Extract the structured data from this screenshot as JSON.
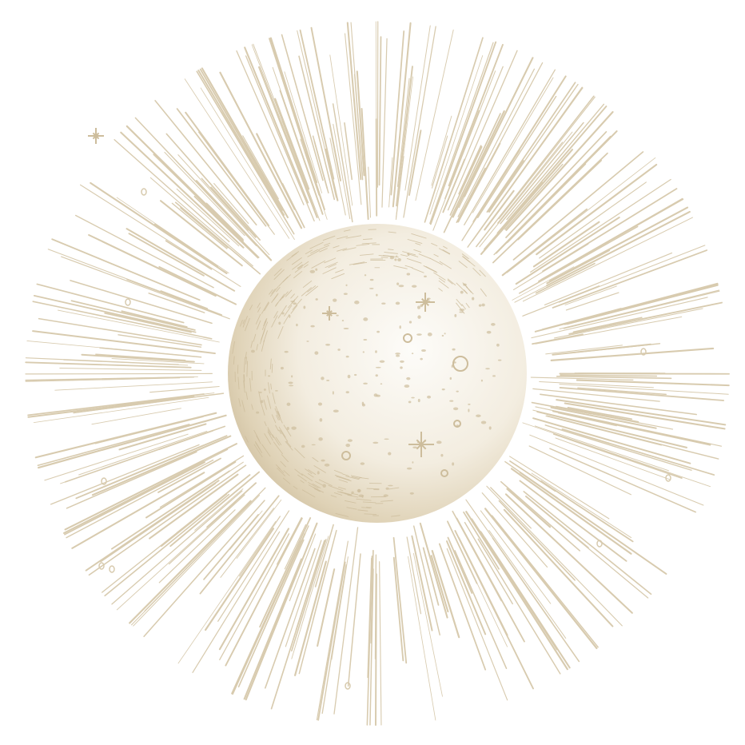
{
  "illustration": {
    "subject": "engraved-moon-with-radiating-rays",
    "colors": {
      "background": "#ffffff",
      "line": "#d8cbaf",
      "shade": "#cdbd9c",
      "highlight": "#fbf9f4"
    }
  }
}
